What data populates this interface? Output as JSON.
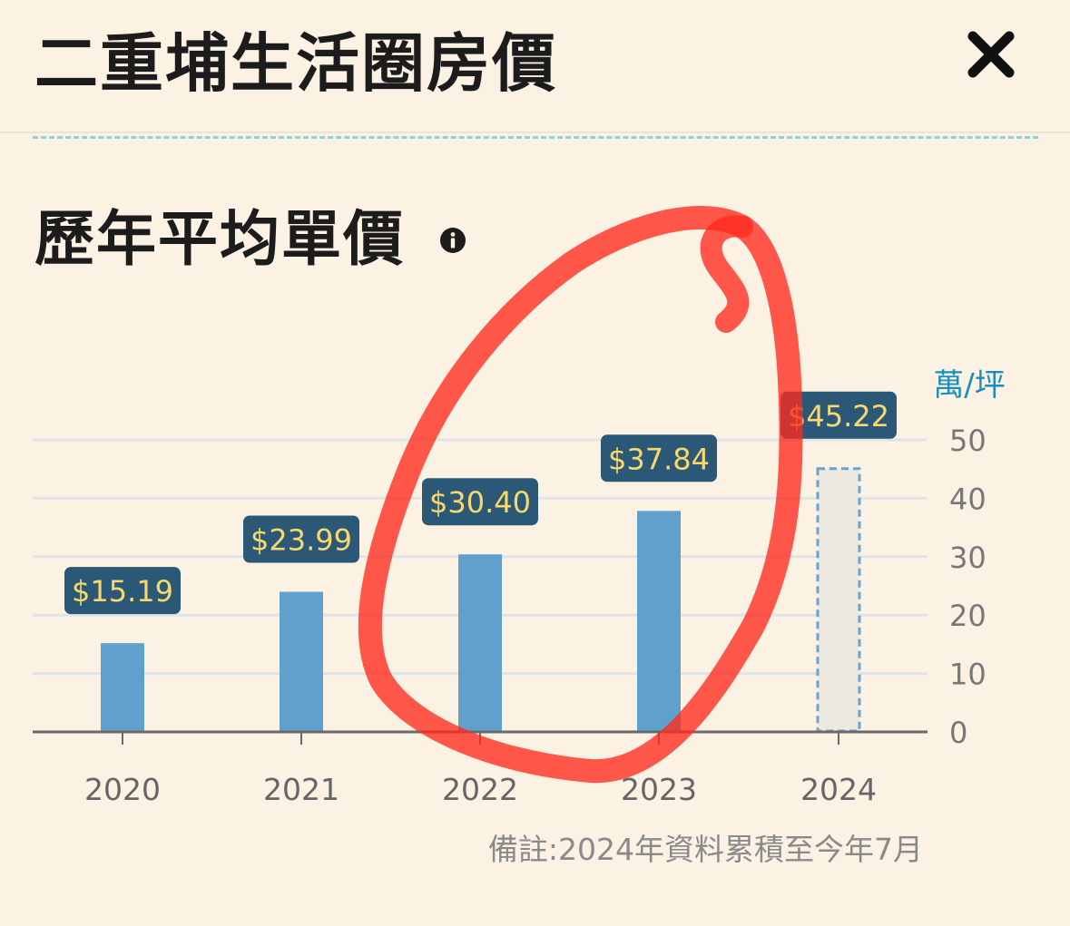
{
  "header": {
    "title": "二重埔生活圈房價",
    "close_icon": "close-icon"
  },
  "section": {
    "title": "歷年平均單價",
    "info_icon": "info-icon"
  },
  "footnote": "備註:2024年資料累積至今年7月",
  "colors": {
    "bar": "#5fa0cd",
    "bar_estimate_fill": "#ebe9e0",
    "bar_estimate_stroke": "#6aa3cf",
    "label_bg": "#2c5878",
    "label_text": "#f6d86b",
    "unit_text": "#1a8fbe",
    "annotation": "#ff2a1c"
  },
  "chart_data": {
    "type": "bar",
    "categories": [
      "2020",
      "2021",
      "2022",
      "2023",
      "2024"
    ],
    "values": [
      15.19,
      23.99,
      30.4,
      37.84,
      45.22
    ],
    "data_labels": [
      "$15.19",
      "$23.99",
      "$30.40",
      "$37.84",
      "$45.22"
    ],
    "partial": [
      false,
      false,
      false,
      false,
      true
    ],
    "yticks": [
      "0",
      "10",
      "20",
      "30",
      "40",
      "50"
    ],
    "ylabel": "萬/坪",
    "ylim": [
      0,
      50
    ],
    "axis_position": "right",
    "grid": true
  }
}
